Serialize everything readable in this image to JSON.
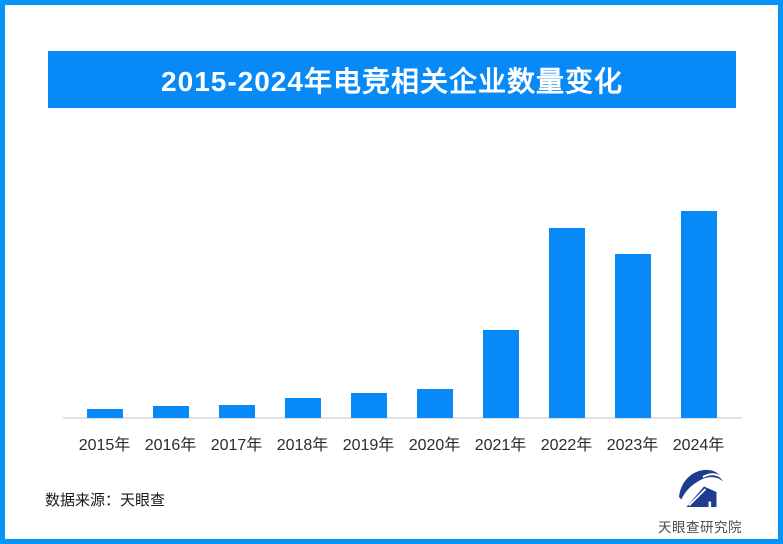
{
  "page": {
    "background": "#FFFFFF",
    "border_color": "#0794F9"
  },
  "header": {
    "title": "2015-2024年电竞相关企业数量变化",
    "bg_color": "#0889F8",
    "text_color": "#FFFFFF"
  },
  "chart_data": {
    "type": "bar",
    "title": "2015-2024年电竞相关企业数量变化",
    "categories": [
      "2015年",
      "2016年",
      "2017年",
      "2018年",
      "2019年",
      "2020年",
      "2021年",
      "2022年",
      "2023年",
      "2024年"
    ],
    "values": [
      4.3,
      5.8,
      6.3,
      9.7,
      12.1,
      14.0,
      42.5,
      91.8,
      79.2,
      100
    ],
    "unit": "相对估计值（图中未标注数值轴），2024年 = 100",
    "xlabel": "",
    "ylabel": "",
    "ylim": [
      0,
      100
    ],
    "grid": false,
    "legend": false,
    "value_labels": false,
    "bar_color": "#0889F8",
    "axis_line_color": "#E2E2E2",
    "tick_label_color": "#2B2B2B"
  },
  "footer": {
    "source_label": "数据来源：天眼查",
    "logo": {
      "text": "天眼查研究院",
      "icon": "tianyancha-eye-logo",
      "icon_color": "#1E3D8F",
      "text_color": "#4A4A4A"
    }
  }
}
